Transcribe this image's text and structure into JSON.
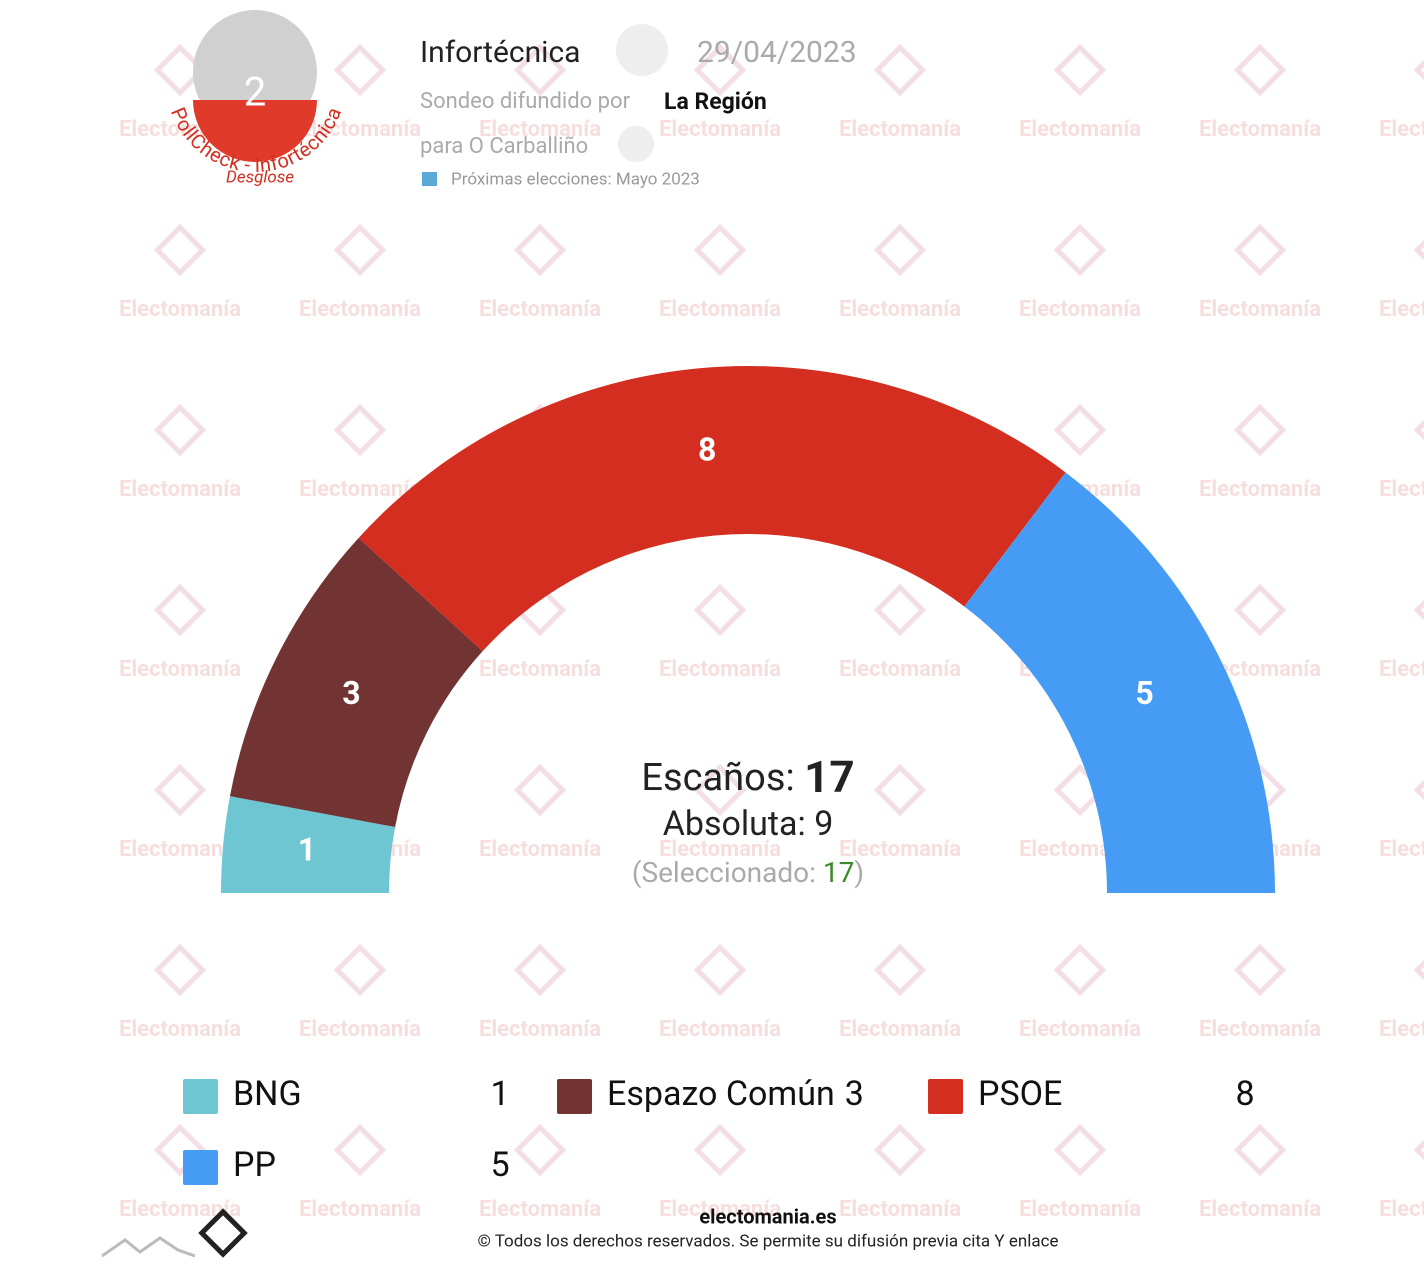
{
  "header": {
    "badge_number": "2",
    "badge_ring": "PollCheck - Infortécnica",
    "badge_link": "Desglose",
    "pollster": "Infortécnica",
    "date": "29/04/2023",
    "spread_by_label": "Sondeo difundido por",
    "spread_by": "La Región",
    "region": "para O Carballiño",
    "next_elections": "Próximas elecciones: Mayo 2023"
  },
  "watermark": "Electomanía",
  "chart_data": {
    "type": "hemicycle",
    "categories": [
      "BNG",
      "Espazo Común",
      "PSOE",
      "PP"
    ],
    "values": [
      1,
      3,
      8,
      5
    ],
    "colors": [
      "#6ec6d2",
      "#723333",
      "#d42e20",
      "#469cf5"
    ],
    "seats_label": "Escaños:",
    "seats_total": 17,
    "majority_label": "Absoluta:",
    "majority": 9,
    "selected_label": "(Seleccionado:",
    "selected": 17,
    "selected_close": ")"
  },
  "footer": {
    "site": "electomania.es",
    "rights": "© Todos los derechos reservados. Se permite su difusión previa cita Y enlace"
  }
}
